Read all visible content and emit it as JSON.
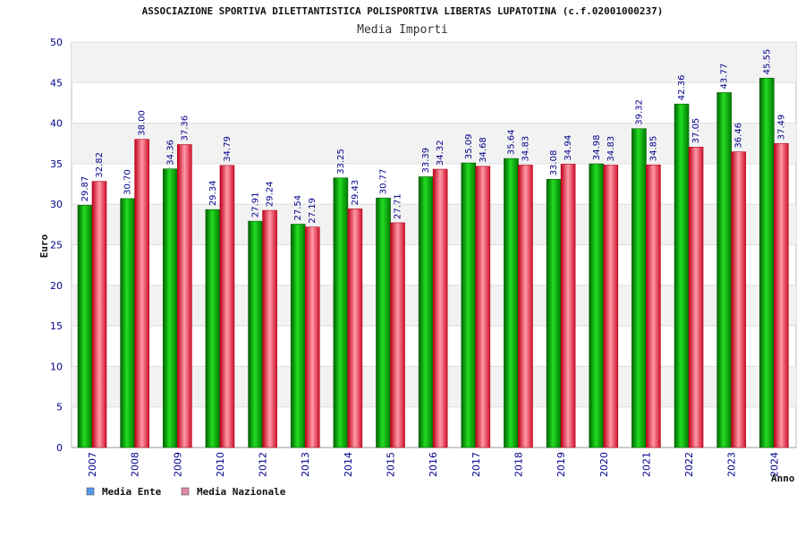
{
  "chart_data": {
    "type": "bar",
    "title": "ASSOCIAZIONE SPORTIVA DILETTANTISTICA POLISPORTIVA LIBERTAS LUPATOTINA (c.f.02001000237)",
    "subtitle": "Media Importi",
    "xlabel": "Anno",
    "ylabel": "Euro",
    "ylim": [
      0,
      50
    ],
    "yticks": [
      0,
      5,
      10,
      15,
      20,
      25,
      30,
      35,
      40,
      45,
      50
    ],
    "categories": [
      "2007",
      "2008",
      "2009",
      "2010",
      "2012",
      "2013",
      "2014",
      "2015",
      "2016",
      "2017",
      "2018",
      "2019",
      "2020",
      "2021",
      "2022",
      "2023",
      "2024"
    ],
    "series": [
      {
        "name": "Media Ente",
        "values": [
          29.87,
          30.7,
          34.36,
          29.34,
          27.91,
          27.54,
          33.25,
          30.77,
          33.39,
          35.09,
          35.64,
          33.08,
          34.98,
          39.32,
          42.36,
          43.77,
          45.55
        ],
        "labels": [
          "29.87",
          "30.70",
          "34.36",
          "29.34",
          "27.91",
          "27.54",
          "33.25",
          "30.77",
          "33.39",
          "35.09",
          "35.64",
          "33.08",
          "34.98",
          "39.32",
          "42.36",
          "43.77",
          "45.55"
        ],
        "color": "#00a000"
      },
      {
        "name": "Media Nazionale",
        "values": [
          32.82,
          38.0,
          37.36,
          34.79,
          29.24,
          27.19,
          29.43,
          27.71,
          34.32,
          34.68,
          34.83,
          34.94,
          34.83,
          34.85,
          37.05,
          36.46,
          37.49
        ],
        "labels": [
          "32.82",
          "38.00",
          "37.36",
          "34.79",
          "29.24",
          "27.19",
          "29.43",
          "27.71",
          "34.32",
          "34.68",
          "34.83",
          "34.94",
          "34.83",
          "34.85",
          "37.05",
          "36.46",
          "37.49"
        ],
        "color": "#e8283c"
      }
    ],
    "legend": [
      {
        "label": "Media Ente",
        "color": "#5599ee"
      },
      {
        "label": "Media Nazionale",
        "color": "#dd88aa"
      }
    ],
    "grid": true
  }
}
